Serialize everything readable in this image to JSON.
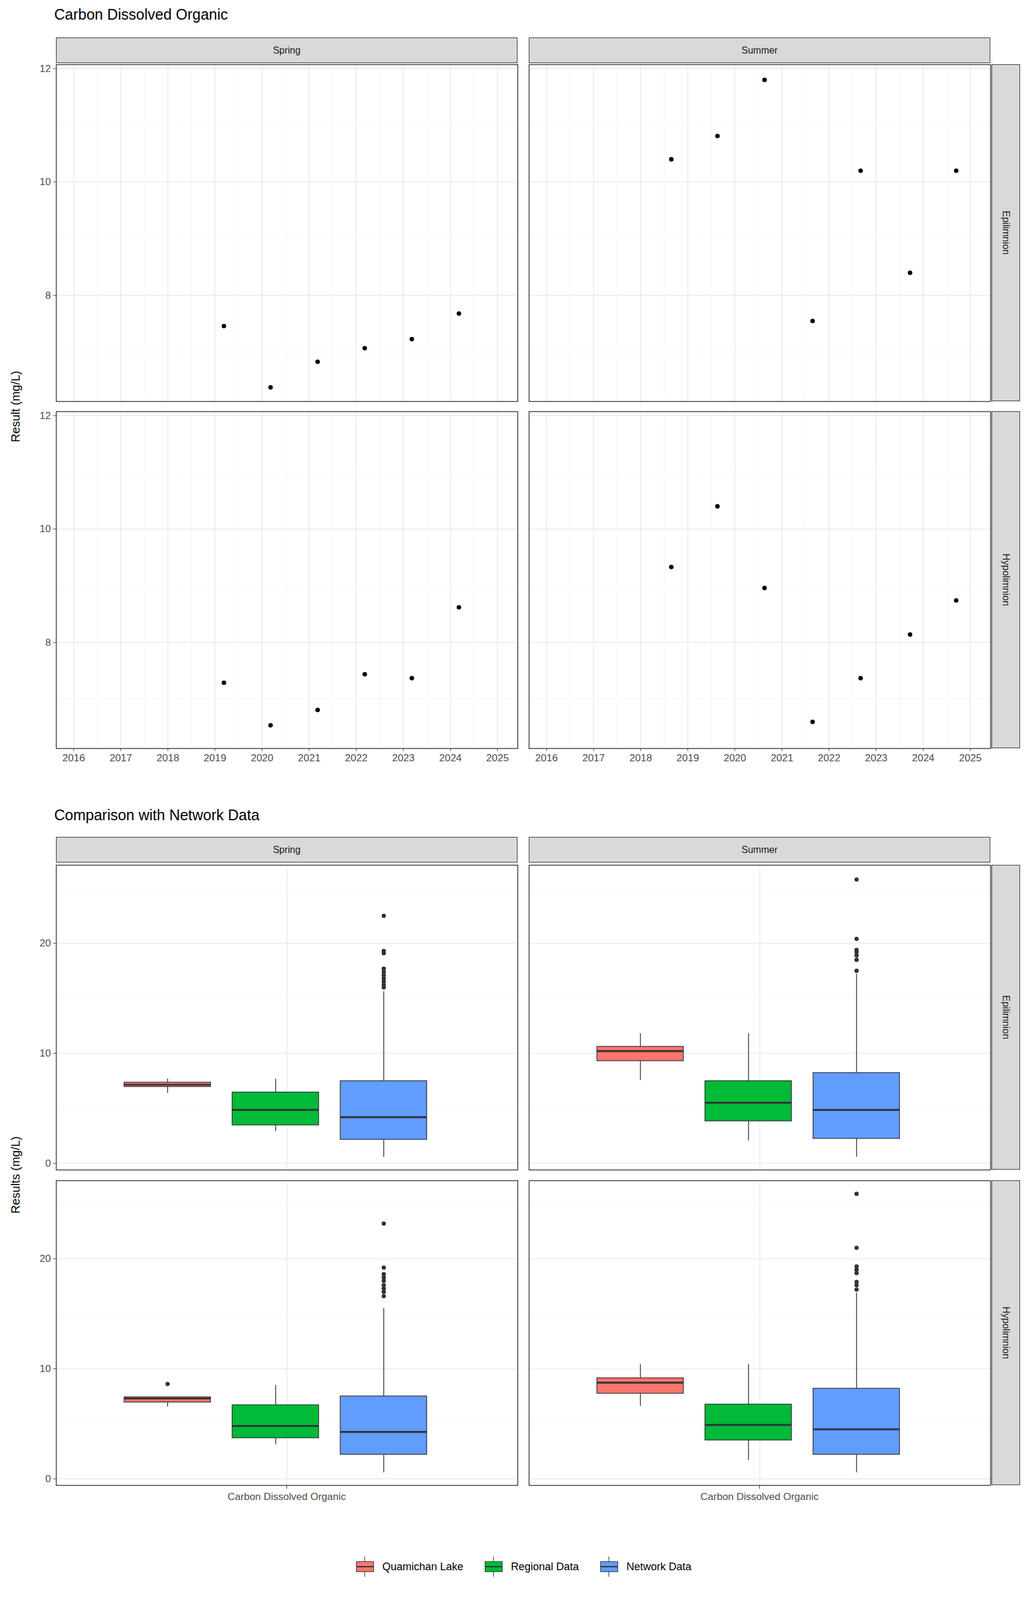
{
  "chart_data": [
    {
      "type": "scatter",
      "title": "Carbon Dissolved Organic",
      "y_label": "Result (mg/L)",
      "facet_columns": [
        "Spring",
        "Summer"
      ],
      "facet_rows": [
        "Epilimnion",
        "Hypolimnion"
      ],
      "xlim": [
        2015.63,
        2025.43
      ],
      "xticks": [
        2016,
        2017,
        2018,
        2019,
        2020,
        2021,
        2022,
        2023,
        2024,
        2025
      ],
      "ylim": [
        6.13,
        12.07
      ],
      "yticks": [
        8,
        10,
        12
      ],
      "grid": true,
      "color": "#000000",
      "panels": [
        {
          "column": "Spring",
          "row": "Epilimnion",
          "x": [
            2019.19,
            2020.18,
            2021.18,
            2022.18,
            2023.18,
            2024.18
          ],
          "values": [
            7.46,
            6.38,
            6.83,
            7.07,
            7.23,
            7.68
          ]
        },
        {
          "column": "Summer",
          "row": "Epilimnion",
          "x": [
            2018.65,
            2019.63,
            2020.63,
            2021.65,
            2022.67,
            2023.72,
            2024.7
          ],
          "values": [
            10.4,
            10.81,
            11.8,
            7.55,
            10.2,
            8.4,
            10.2
          ]
        },
        {
          "column": "Spring",
          "row": "Hypolimnion",
          "x": [
            2019.19,
            2020.18,
            2021.18,
            2022.18,
            2023.18,
            2024.18
          ],
          "values": [
            7.29,
            6.54,
            6.81,
            7.44,
            7.37,
            8.62
          ]
        },
        {
          "column": "Summer",
          "row": "Hypolimnion",
          "x": [
            2018.65,
            2019.63,
            2020.63,
            2021.65,
            2022.67,
            2023.72,
            2024.7
          ],
          "values": [
            9.33,
            10.4,
            8.96,
            6.6,
            7.37,
            8.14,
            8.74
          ]
        }
      ]
    },
    {
      "type": "box",
      "title": "Comparison with Network Data",
      "y_label": "Results (mg/L)",
      "categories": [
        "Carbon Dissolved Organic"
      ],
      "facet_columns": [
        "Spring",
        "Summer"
      ],
      "facet_rows": [
        "Epilimnion",
        "Hypolimnion"
      ],
      "ylim": [
        -0.6,
        27.1
      ],
      "yticks": [
        0,
        10,
        20
      ],
      "grid": true,
      "legend": "bottom",
      "series": [
        {
          "name": "Quamichan Lake",
          "color": "#F8766D"
        },
        {
          "name": "Regional Data",
          "color": "#00BA38"
        },
        {
          "name": "Network Data",
          "color": "#619CFF"
        }
      ],
      "panels": [
        {
          "column": "Spring",
          "row": "Epilimnion",
          "boxes": [
            {
              "series": "Quamichan Lake",
              "min": 6.38,
              "q1": 6.95,
              "median": 7.15,
              "q3": 7.35,
              "max": 7.68,
              "outliers": []
            },
            {
              "series": "Regional Data",
              "min": 2.9,
              "q1": 3.46,
              "median": 4.86,
              "q3": 6.45,
              "max": 7.66,
              "outliers": []
            },
            {
              "series": "Network Data",
              "min": 0.56,
              "q1": 2.15,
              "median": 4.2,
              "q3": 7.48,
              "max": 15.6,
              "outliers": [
                22.5,
                19.3,
                19.1,
                17.7,
                17.4,
                17.1,
                16.8,
                16.5,
                16.2,
                16.0
              ]
            }
          ]
        },
        {
          "column": "Summer",
          "row": "Epilimnion",
          "boxes": [
            {
              "series": "Quamichan Lake",
              "min": 7.55,
              "q1": 9.3,
              "median": 10.2,
              "q3": 10.6,
              "max": 11.8,
              "outliers": []
            },
            {
              "series": "Regional Data",
              "min": 2.06,
              "q1": 3.83,
              "median": 5.51,
              "q3": 7.48,
              "max": 11.8,
              "outliers": []
            },
            {
              "series": "Network Data",
              "min": 0.56,
              "q1": 2.24,
              "median": 4.86,
              "q3": 8.22,
              "max": 17.2,
              "outliers": [
                25.8,
                20.4,
                19.4,
                19.2,
                18.9,
                18.5,
                17.5
              ]
            }
          ]
        },
        {
          "column": "Spring",
          "row": "Hypolimnion",
          "boxes": [
            {
              "series": "Quamichan Lake",
              "min": 6.54,
              "q1": 6.95,
              "median": 7.3,
              "q3": 7.42,
              "max": 7.44,
              "outliers": [
                8.62
              ]
            },
            {
              "series": "Regional Data",
              "min": 3.1,
              "q1": 3.7,
              "median": 4.8,
              "q3": 6.7,
              "max": 8.5,
              "outliers": []
            },
            {
              "series": "Network Data",
              "min": 0.56,
              "q1": 2.2,
              "median": 4.26,
              "q3": 7.5,
              "max": 15.5,
              "outliers": [
                23.2,
                19.2,
                18.6,
                18.3,
                18.0,
                17.6,
                17.3,
                17.0,
                16.6
              ]
            }
          ]
        },
        {
          "column": "Summer",
          "row": "Hypolimnion",
          "boxes": [
            {
              "series": "Quamichan Lake",
              "min": 6.6,
              "q1": 7.75,
              "median": 8.74,
              "q3": 9.15,
              "max": 10.4,
              "outliers": []
            },
            {
              "series": "Regional Data",
              "min": 1.67,
              "q1": 3.5,
              "median": 4.9,
              "q3": 6.76,
              "max": 10.4,
              "outliers": []
            },
            {
              "series": "Network Data",
              "min": 0.56,
              "q1": 2.2,
              "median": 4.5,
              "q3": 8.2,
              "max": 16.9,
              "outliers": [
                25.9,
                21.0,
                19.3,
                19.0,
                18.7,
                17.9,
                17.6,
                17.2
              ]
            }
          ]
        }
      ]
    }
  ]
}
